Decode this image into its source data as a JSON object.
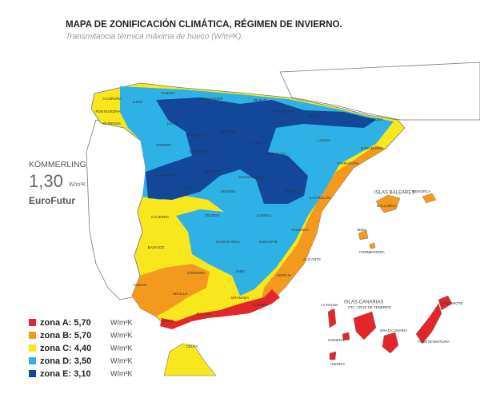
{
  "header": {
    "title": "MAPA DE ZONIFICACIÓN CLIMÁTICA, RÉGIMEN DE INVIERNO.",
    "subtitle": "Transmitancia térmica máxima de hueco (W/m²K)."
  },
  "brand": {
    "name": "KÖMMERLING",
    "value": "1,30",
    "unit": "W/m²K",
    "product": "EuroFutur"
  },
  "legend": [
    {
      "label": "zona A: 5,70",
      "unit": "W/m²K",
      "color": "#e3262b"
    },
    {
      "label": "zona B: 5,70",
      "unit": "W/m²K",
      "color": "#f39a1e"
    },
    {
      "label": "zona C: 4,40",
      "unit": "W/m²K",
      "color": "#f8e71c"
    },
    {
      "label": "zona D: 3,50",
      "unit": "W/m²K",
      "color": "#2eb2e6"
    },
    {
      "label": "zona E: 3,10",
      "unit": "W/m²K",
      "color": "#13479a"
    }
  ],
  "regions": {
    "baleares": "ISLAS BALEARES",
    "canarias": "ISLAS CANARIAS"
  },
  "places": [
    "A CORUÑA",
    "LUGO",
    "OVIEDO",
    "SANTANDER",
    "BILBAO",
    "PAMPLONA",
    "HUESCA",
    "GIRONA",
    "PONTEVEDRA",
    "OURENSE",
    "LEÓN",
    "BURGOS",
    "PALENCIA",
    "ZAMORA",
    "VALLADOLID",
    "SORIA",
    "ZARAGOZA",
    "LLEIDA",
    "BARCELONA",
    "TARRAGONA",
    "SALAMANCA",
    "SEGOVIA",
    "ÁVILA",
    "MADRID",
    "GUADALAJARA",
    "TERUEL",
    "CASTELLÓN",
    "CÁCERES",
    "TOLEDO",
    "CUENCA",
    "VALENCIA",
    "BADAJOZ",
    "CIUDAD REAL",
    "ALBACETE",
    "ALICANTE",
    "CÓRDOBA",
    "JAÉN",
    "MURCIA",
    "HUELVA",
    "SEVILLA",
    "GRANADA",
    "ALMERÍA",
    "MÁLAGA",
    "CÁDIZ",
    "CEUTA",
    "MENORCA",
    "MALLORCA",
    "IBIZA",
    "FORMENTERA",
    "LA PALMA",
    "STA. CRUZ DE TENERIFE",
    "LANZAROTE",
    "GRAN CANARIA",
    "FUERTEVENTURA",
    "GOMERA",
    "HIERRO"
  ]
}
